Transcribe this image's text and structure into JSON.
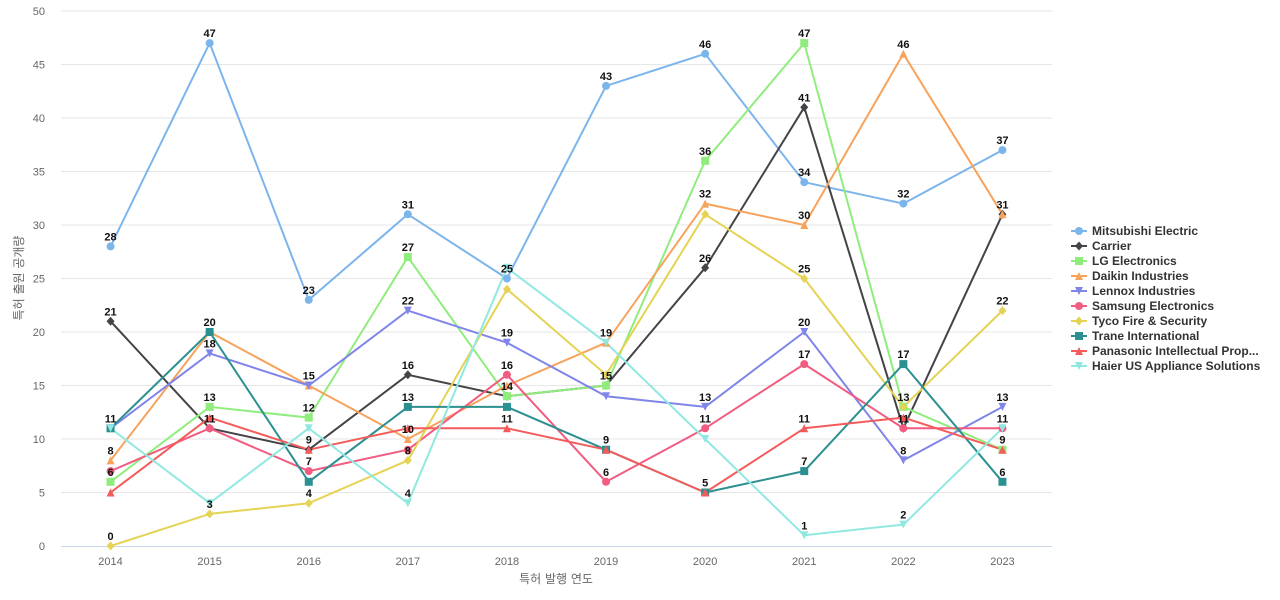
{
  "chart_data": {
    "type": "line",
    "xlabel": "특허 발행 연도",
    "ylabel": "특허 출원 공개량",
    "x": [
      "2014",
      "2015",
      "2016",
      "2017",
      "2018",
      "2019",
      "2020",
      "2021",
      "2022",
      "2023"
    ],
    "ylim": [
      0,
      50
    ],
    "yticks": [
      0,
      5,
      10,
      15,
      20,
      25,
      30,
      35,
      40,
      45,
      50
    ],
    "grid": true,
    "legend_position": "right",
    "series": [
      {
        "name": "Mitsubishi Electric",
        "color": "#7cb5ec",
        "marker": "circle",
        "values": [
          28,
          47,
          23,
          31,
          25,
          43,
          46,
          34,
          32,
          37
        ]
      },
      {
        "name": "Carrier",
        "color": "#434348",
        "marker": "diamond",
        "values": [
          21,
          11,
          9,
          16,
          14,
          15,
          26,
          41,
          11,
          31
        ]
      },
      {
        "name": "LG Electronics",
        "color": "#90ed7d",
        "marker": "square",
        "values": [
          6,
          13,
          12,
          27,
          14,
          15,
          36,
          47,
          13,
          9
        ]
      },
      {
        "name": "Daikin Industries",
        "color": "#f7a35c",
        "marker": "triangle",
        "values": [
          8,
          20,
          15,
          10,
          15,
          19,
          32,
          30,
          46,
          31
        ]
      },
      {
        "name": "Lennox Industries",
        "color": "#8085e9",
        "marker": "triangle-down",
        "values": [
          11,
          18,
          15,
          22,
          19,
          14,
          13,
          20,
          8,
          13
        ]
      },
      {
        "name": "Samsung Electronics",
        "color": "#f15c80",
        "marker": "circle",
        "values": [
          7,
          11,
          7,
          9,
          16,
          6,
          11,
          17,
          11,
          11
        ]
      },
      {
        "name": "Tyco Fire & Security",
        "color": "#e4d354",
        "marker": "diamond",
        "values": [
          0,
          3,
          4,
          8,
          24,
          16,
          31,
          25,
          13,
          22
        ]
      },
      {
        "name": "Trane International",
        "color": "#2b908f",
        "marker": "square",
        "values": [
          11,
          20,
          6,
          13,
          13,
          9,
          5,
          7,
          17,
          6
        ]
      },
      {
        "name": "Panasonic Intellectual Prop...",
        "color": "#f45b5b",
        "marker": "triangle",
        "values": [
          5,
          12,
          9,
          11,
          11,
          9,
          5,
          11,
          12,
          9
        ]
      },
      {
        "name": "Haier US Appliance Solutions",
        "color": "#91e8e1",
        "marker": "triangle-down",
        "values": [
          11,
          4,
          11,
          4,
          26,
          19,
          10,
          1,
          2,
          11
        ]
      }
    ],
    "data_labels": [
      {
        "x": "2014",
        "text": "28",
        "value": 28
      },
      {
        "x": "2014",
        "text": "21",
        "value": 21
      },
      {
        "x": "2014",
        "text": "11",
        "value": 11
      },
      {
        "x": "2014",
        "text": "8",
        "value": 8
      },
      {
        "x": "2014",
        "text": "6",
        "value": 6
      },
      {
        "x": "2014",
        "text": "0",
        "value": 0
      },
      {
        "x": "2015",
        "text": "47",
        "value": 47
      },
      {
        "x": "2015",
        "text": "20",
        "value": 20
      },
      {
        "x": "2015",
        "text": "18",
        "value": 18
      },
      {
        "x": "2015",
        "text": "13",
        "value": 13
      },
      {
        "x": "2015",
        "text": "11",
        "value": 11
      },
      {
        "x": "2015",
        "text": "3",
        "value": 3
      },
      {
        "x": "2016",
        "text": "23",
        "value": 23
      },
      {
        "x": "2016",
        "text": "15",
        "value": 15
      },
      {
        "x": "2016",
        "text": "12",
        "value": 12
      },
      {
        "x": "2016",
        "text": "9",
        "value": 9
      },
      {
        "x": "2016",
        "text": "7",
        "value": 7
      },
      {
        "x": "2016",
        "text": "4",
        "value": 4
      },
      {
        "x": "2017",
        "text": "31",
        "value": 31
      },
      {
        "x": "2017",
        "text": "27",
        "value": 27
      },
      {
        "x": "2017",
        "text": "22",
        "value": 22
      },
      {
        "x": "2017",
        "text": "16",
        "value": 16
      },
      {
        "x": "2017",
        "text": "13",
        "value": 13
      },
      {
        "x": "2017",
        "text": "10",
        "value": 10
      },
      {
        "x": "2017",
        "text": "8",
        "value": 8
      },
      {
        "x": "2017",
        "text": "4",
        "value": 4
      },
      {
        "x": "2018",
        "text": "25",
        "value": 25
      },
      {
        "x": "2018",
        "text": "19",
        "value": 19
      },
      {
        "x": "2018",
        "text": "16",
        "value": 16
      },
      {
        "x": "2018",
        "text": "14",
        "value": 14
      },
      {
        "x": "2018",
        "text": "11",
        "value": 11
      },
      {
        "x": "2019",
        "text": "43",
        "value": 43
      },
      {
        "x": "2019",
        "text": "19",
        "value": 19
      },
      {
        "x": "2019",
        "text": "15",
        "value": 15
      },
      {
        "x": "2019",
        "text": "9",
        "value": 9
      },
      {
        "x": "2019",
        "text": "6",
        "value": 6
      },
      {
        "x": "2020",
        "text": "46",
        "value": 46
      },
      {
        "x": "2020",
        "text": "36",
        "value": 36
      },
      {
        "x": "2020",
        "text": "32",
        "value": 32
      },
      {
        "x": "2020",
        "text": "26",
        "value": 26
      },
      {
        "x": "2020",
        "text": "13",
        "value": 13
      },
      {
        "x": "2020",
        "text": "11",
        "value": 11
      },
      {
        "x": "2020",
        "text": "5",
        "value": 5
      },
      {
        "x": "2021",
        "text": "47",
        "value": 47
      },
      {
        "x": "2021",
        "text": "41",
        "value": 41
      },
      {
        "x": "2021",
        "text": "34",
        "value": 34
      },
      {
        "x": "2021",
        "text": "30",
        "value": 30
      },
      {
        "x": "2021",
        "text": "25",
        "value": 25
      },
      {
        "x": "2021",
        "text": "20",
        "value": 20
      },
      {
        "x": "2021",
        "text": "17",
        "value": 17
      },
      {
        "x": "2021",
        "text": "11",
        "value": 11
      },
      {
        "x": "2021",
        "text": "7",
        "value": 7
      },
      {
        "x": "2021",
        "text": "1",
        "value": 1
      },
      {
        "x": "2022",
        "text": "46",
        "value": 46
      },
      {
        "x": "2022",
        "text": "32",
        "value": 32
      },
      {
        "x": "2022",
        "text": "17",
        "value": 17
      },
      {
        "x": "2022",
        "text": "13",
        "value": 13
      },
      {
        "x": "2022",
        "text": "11",
        "value": 11
      },
      {
        "x": "2022",
        "text": "8",
        "value": 8
      },
      {
        "x": "2022",
        "text": "2",
        "value": 2
      },
      {
        "x": "2023",
        "text": "37",
        "value": 37
      },
      {
        "x": "2023",
        "text": "31",
        "value": 31
      },
      {
        "x": "2023",
        "text": "22",
        "value": 22
      },
      {
        "x": "2023",
        "text": "13",
        "value": 13
      },
      {
        "x": "2023",
        "text": "11",
        "value": 11
      },
      {
        "x": "2023",
        "text": "9",
        "value": 9
      },
      {
        "x": "2023",
        "text": "6",
        "value": 6
      }
    ]
  }
}
